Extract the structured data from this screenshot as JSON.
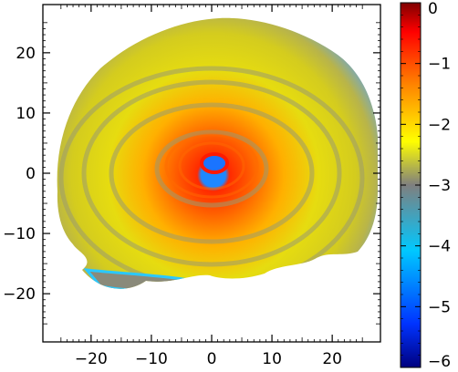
{
  "chart_data": {
    "type": "heatmap",
    "title": "",
    "xlabel": "",
    "ylabel": "",
    "xlim": [
      -28,
      28
    ],
    "ylim": [
      -28,
      28
    ],
    "x_ticks": [
      {
        "value": -20,
        "label": "−20"
      },
      {
        "value": -10,
        "label": "−10"
      },
      {
        "value": 0,
        "label": "0"
      },
      {
        "value": 10,
        "label": "10"
      },
      {
        "value": 20,
        "label": "20"
      }
    ],
    "y_ticks": [
      {
        "value": 20,
        "label": "20"
      },
      {
        "value": 10,
        "label": "10"
      },
      {
        "value": 0,
        "label": "0"
      },
      {
        "value": -10,
        "label": "−10"
      },
      {
        "value": -20,
        "label": "−20"
      }
    ],
    "colorbar": {
      "range": [
        -6,
        0
      ],
      "ticks": [
        {
          "value": 0,
          "label": "0"
        },
        {
          "value": -1,
          "label": "−1"
        },
        {
          "value": -2,
          "label": "−2"
        },
        {
          "value": -3,
          "label": "−3"
        },
        {
          "value": -4,
          "label": "−4"
        },
        {
          "value": -5,
          "label": "−5"
        },
        {
          "value": -6,
          "label": "−6"
        }
      ],
      "colormap": [
        "#00007f",
        "#0033ff",
        "#00c8ff",
        "#7f7f7f",
        "#ffff00",
        "#ff8000",
        "#ff0000",
        "#7f0000"
      ]
    },
    "field": {
      "center": [
        0.5,
        0.8
      ],
      "hole_radius": 2.2,
      "peak_value": -1.0,
      "outer_value": -3.2,
      "edge_value": -4.3,
      "description_values": "log10 density; peak ring near center ~ -1, disk body ~ -2.5 to -3, rim ~ -4 to -4.5, central hole ~ -4.5"
    }
  }
}
